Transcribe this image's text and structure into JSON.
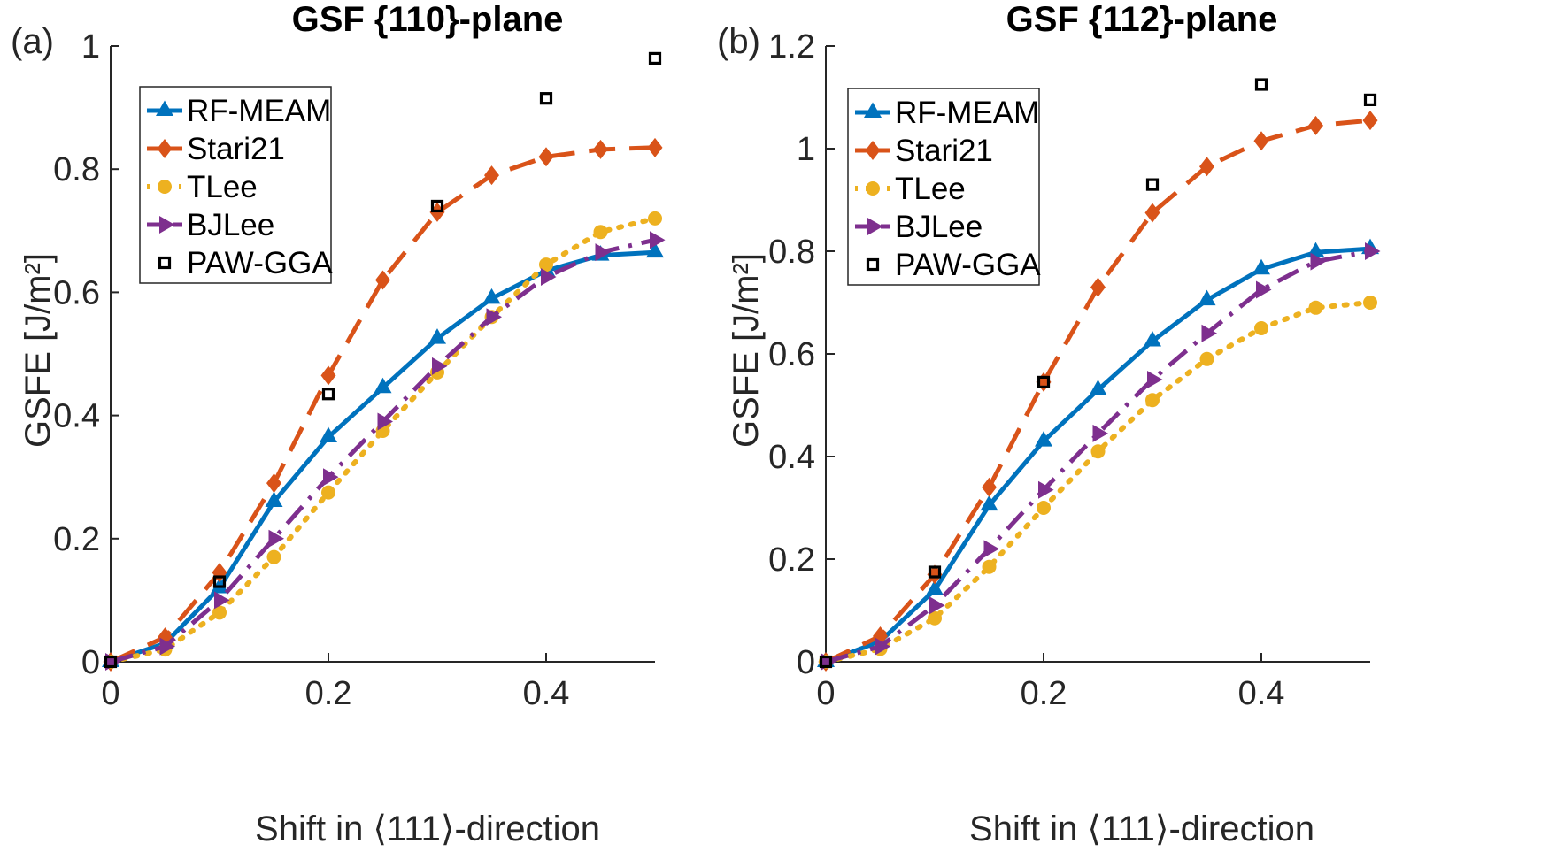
{
  "panels": [
    {
      "panel_label": "(a)",
      "title": "GSF {110}-plane",
      "xlabel": "Shift in ⟨111⟩-direction",
      "ylabel": "GSFE [J/m²]",
      "ylim": [
        0,
        1
      ],
      "yticks": [
        0,
        0.2,
        0.4,
        0.6,
        0.8,
        1
      ],
      "ytick_labels": [
        "0",
        "0.2",
        "0.4",
        "0.6",
        "0.8",
        "1"
      ],
      "xticks": [
        0,
        0.2,
        0.4
      ],
      "xtick_labels": [
        "0",
        "0.2",
        "0.4"
      ]
    },
    {
      "panel_label": "(b)",
      "title": "GSF {112}-plane",
      "xlabel": "Shift in ⟨111⟩-direction",
      "ylabel": "GSFE [J/m²]",
      "ylim": [
        0,
        1.2
      ],
      "yticks": [
        0,
        0.2,
        0.4,
        0.6,
        0.8,
        1,
        1.2
      ],
      "ytick_labels": [
        "0",
        "0.2",
        "0.4",
        "0.6",
        "0.8",
        "1",
        "1.2"
      ],
      "xticks": [
        0,
        0.2,
        0.4
      ],
      "xtick_labels": [
        "0",
        "0.2",
        "0.4"
      ]
    }
  ],
  "chart_data": [
    {
      "type": "line",
      "title": "GSF {110}-plane",
      "xlabel": "Shift in ⟨111⟩-direction",
      "ylabel": "GSFE [J/m²]",
      "xlim": [
        0,
        0.5
      ],
      "ylim": [
        0,
        1
      ],
      "grid": false,
      "legend_position": "top-left",
      "series": [
        {
          "name": "RF-MEAM",
          "color": "#0072BD",
          "style": "solid",
          "marker": "triangle-up",
          "x": [
            0,
            0.05,
            0.1,
            0.15,
            0.2,
            0.25,
            0.3,
            0.35,
            0.4,
            0.45,
            0.5
          ],
          "y": [
            0,
            0.03,
            0.12,
            0.26,
            0.365,
            0.445,
            0.525,
            0.59,
            0.635,
            0.66,
            0.665
          ]
        },
        {
          "name": "Stari21",
          "color": "#D95319",
          "style": "dashed",
          "marker": "diamond",
          "x": [
            0,
            0.05,
            0.1,
            0.15,
            0.2,
            0.25,
            0.3,
            0.35,
            0.4,
            0.45,
            0.5
          ],
          "y": [
            0,
            0.04,
            0.145,
            0.29,
            0.465,
            0.62,
            0.73,
            0.79,
            0.82,
            0.832,
            0.835
          ]
        },
        {
          "name": "TLee",
          "color": "#EDB120",
          "style": "dotted",
          "marker": "circle",
          "x": [
            0,
            0.05,
            0.1,
            0.15,
            0.2,
            0.25,
            0.3,
            0.35,
            0.4,
            0.45,
            0.5
          ],
          "y": [
            0,
            0.02,
            0.08,
            0.17,
            0.275,
            0.375,
            0.47,
            0.56,
            0.645,
            0.698,
            0.72
          ]
        },
        {
          "name": "BJLee",
          "color": "#7E2F8E",
          "style": "dashdot",
          "marker": "triangle-right",
          "x": [
            0,
            0.05,
            0.1,
            0.15,
            0.2,
            0.25,
            0.3,
            0.35,
            0.4,
            0.45,
            0.5
          ],
          "y": [
            0,
            0.025,
            0.1,
            0.2,
            0.3,
            0.39,
            0.48,
            0.56,
            0.625,
            0.665,
            0.685
          ]
        },
        {
          "name": "PAW-GGA",
          "color": "#000000",
          "style": "none",
          "marker": "square",
          "x": [
            0,
            0.1,
            0.2,
            0.3,
            0.4,
            0.5
          ],
          "y": [
            0,
            0.13,
            0.435,
            0.74,
            0.915,
            0.98
          ]
        }
      ]
    },
    {
      "type": "line",
      "title": "GSF {112}-plane",
      "xlabel": "Shift in ⟨111⟩-direction",
      "ylabel": "GSFE [J/m²]",
      "xlim": [
        0,
        0.5
      ],
      "ylim": [
        0,
        1.2
      ],
      "grid": false,
      "legend_position": "top-left",
      "series": [
        {
          "name": "RF-MEAM",
          "color": "#0072BD",
          "style": "solid",
          "marker": "triangle-up",
          "x": [
            0,
            0.05,
            0.1,
            0.15,
            0.2,
            0.25,
            0.3,
            0.35,
            0.4,
            0.45,
            0.5
          ],
          "y": [
            0,
            0.04,
            0.14,
            0.305,
            0.43,
            0.53,
            0.625,
            0.705,
            0.765,
            0.798,
            0.805
          ]
        },
        {
          "name": "Stari21",
          "color": "#D95319",
          "style": "dashed",
          "marker": "diamond",
          "x": [
            0,
            0.05,
            0.1,
            0.15,
            0.2,
            0.25,
            0.3,
            0.35,
            0.4,
            0.45,
            0.5
          ],
          "y": [
            0,
            0.05,
            0.17,
            0.34,
            0.545,
            0.73,
            0.875,
            0.965,
            1.015,
            1.045,
            1.055
          ]
        },
        {
          "name": "TLee",
          "color": "#EDB120",
          "style": "dotted",
          "marker": "circle",
          "x": [
            0,
            0.05,
            0.1,
            0.15,
            0.2,
            0.25,
            0.3,
            0.35,
            0.4,
            0.45,
            0.5
          ],
          "y": [
            0,
            0.025,
            0.085,
            0.185,
            0.3,
            0.41,
            0.51,
            0.59,
            0.65,
            0.69,
            0.7
          ]
        },
        {
          "name": "BJLee",
          "color": "#7E2F8E",
          "style": "dashdot",
          "marker": "triangle-right",
          "x": [
            0,
            0.05,
            0.1,
            0.15,
            0.2,
            0.25,
            0.3,
            0.35,
            0.4,
            0.45,
            0.5
          ],
          "y": [
            0,
            0.03,
            0.11,
            0.22,
            0.335,
            0.445,
            0.55,
            0.64,
            0.725,
            0.78,
            0.8
          ]
        },
        {
          "name": "PAW-GGA",
          "color": "#000000",
          "style": "none",
          "marker": "square",
          "x": [
            0,
            0.1,
            0.2,
            0.3,
            0.4,
            0.5
          ],
          "y": [
            0,
            0.175,
            0.545,
            0.93,
            1.125,
            1.095
          ]
        }
      ]
    }
  ]
}
